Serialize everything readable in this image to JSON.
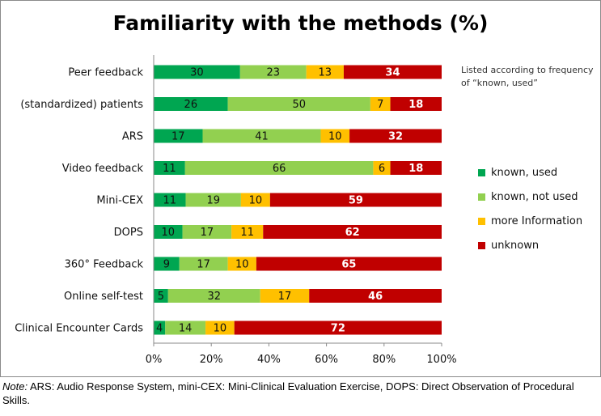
{
  "chart_data": {
    "type": "bar",
    "orientation": "horizontal",
    "stacked": true,
    "title": "Familiarity with the methods (%)",
    "side_note": "Listed according to frequency of “known, used”",
    "categories": [
      "Peer feedback",
      "(standardized) patients",
      "ARS",
      "Video feedback",
      "Mini-CEX",
      "DOPS",
      "360° Feedback",
      "Online self-test",
      "Clinical Encounter Cards"
    ],
    "series": [
      {
        "name": "known, used",
        "color": "#00a651",
        "values": [
          30,
          26,
          17,
          11,
          11,
          10,
          9,
          5,
          4
        ]
      },
      {
        "name": "known, not used",
        "color": "#92d050",
        "values": [
          23,
          50,
          41,
          66,
          19,
          17,
          17,
          32,
          14
        ]
      },
      {
        "name": "more Information",
        "color": "#ffc000",
        "values": [
          13,
          7,
          10,
          6,
          10,
          11,
          10,
          17,
          10
        ]
      },
      {
        "name": "unknown",
        "color": "#c00000",
        "values": [
          34,
          18,
          32,
          18,
          59,
          62,
          65,
          46,
          72
        ]
      }
    ],
    "xlim": [
      0,
      100
    ],
    "xticks": [
      "0%",
      "20%",
      "40%",
      "60%",
      "80%",
      "100%"
    ],
    "grid": false,
    "legend_position": "right"
  },
  "note": {
    "lead": "Note:",
    "text": " ARS: Audio Response System, mini-CEX: Mini-Clinical Evaluation Exercise, DOPS: Direct Observation of Procedural Skills."
  }
}
